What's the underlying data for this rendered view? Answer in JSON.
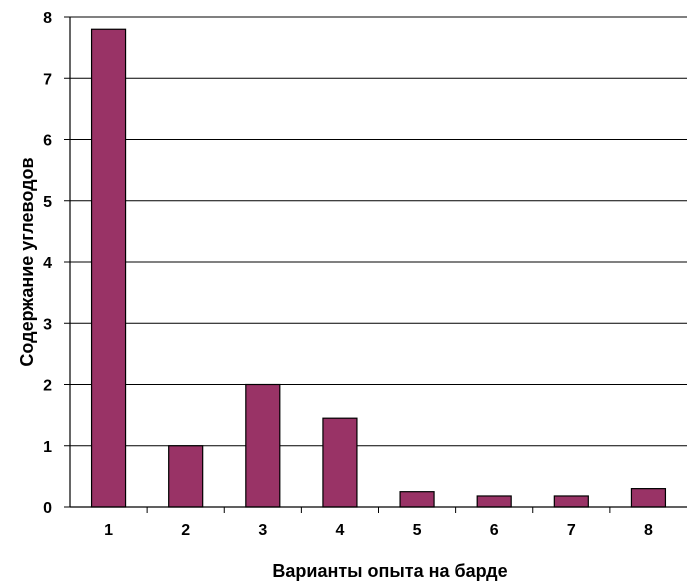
{
  "chart_data": {
    "type": "bar",
    "title": "",
    "xlabel": "Варианты опыта на барде",
    "ylabel": "Содержание углеводов",
    "categories": [
      "1",
      "2",
      "3",
      "4",
      "5",
      "6",
      "7",
      "8"
    ],
    "values": [
      7.8,
      1.0,
      2.0,
      1.45,
      0.25,
      0.18,
      0.18,
      0.3
    ],
    "ylim": [
      0,
      8
    ],
    "yticks": [
      "0",
      "1",
      "2",
      "3",
      "4",
      "5",
      "6",
      "7",
      "8"
    ],
    "grid": true,
    "bar_color": "#993366",
    "legend": "none"
  }
}
